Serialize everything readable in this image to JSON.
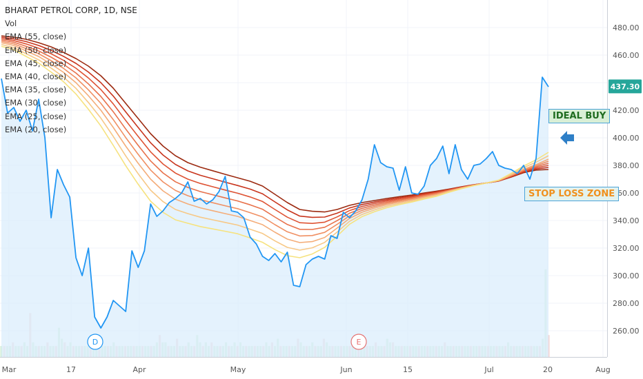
{
  "header": {
    "symbol": "BHARAT PETROL CORP, 1D, NSE",
    "volume_label": "Vol",
    "ema_labels": [
      "EMA (55, close)",
      "EMA (50, close)",
      "EMA (45, close)",
      "EMA (40, close)",
      "EMA (35, close)",
      "EMA (30, close)",
      "EMA (25, close)",
      "EMA (20, close)"
    ]
  },
  "annotations": {
    "ideal_buy": "IDEAL BUY",
    "stop_loss": "STOP LOSS ZONE",
    "arrow_icon": "arrow-left-icon"
  },
  "colors": {
    "price_line": "#2196f3",
    "price_fill": "#dbeefc",
    "last_price_badge": "#26a69a",
    "ema_colors": [
      "#9c2a10",
      "#c8341c",
      "#de5233",
      "#e8714a",
      "#f08f62",
      "#f4ac78",
      "#f7c886",
      "#f6e27e"
    ]
  },
  "chart_data": {
    "type": "line",
    "title": "BHARAT PETROL CORP, 1D, NSE",
    "xlabel": "",
    "ylabel": "",
    "x_ticks": [
      "Mar",
      "17",
      "Apr",
      "May",
      "Jun",
      "15",
      "Jul",
      "20",
      "Aug"
    ],
    "y_ticks": [
      260,
      280,
      300,
      320,
      340,
      360,
      380,
      400,
      420,
      440,
      460,
      480
    ],
    "y_tick_labels": [
      "260.00",
      "280.00",
      "300.00",
      "320.00",
      "340.00",
      "360.00",
      "380.00",
      "400.00",
      "420.00",
      "440.00",
      "460.00",
      "480.00"
    ],
    "ylim": [
      247,
      497
    ],
    "last_price": 437.3,
    "last_price_label": "437.30",
    "event_markers": [
      "D",
      "E"
    ],
    "price": [
      443,
      418,
      422,
      412,
      420,
      405,
      428,
      400,
      342,
      377,
      366,
      357,
      313,
      300,
      320,
      270,
      262,
      270,
      282,
      278,
      274,
      318,
      306,
      318,
      352,
      343,
      347,
      353,
      356,
      360,
      368,
      354,
      356,
      352,
      355,
      361,
      372,
      347,
      346,
      342,
      328,
      323,
      314,
      311,
      316,
      310,
      317,
      293,
      292,
      308,
      312,
      314,
      312,
      329,
      327,
      346,
      342,
      347,
      355,
      370,
      395,
      382,
      379,
      378,
      362,
      379,
      360,
      359,
      365,
      380,
      385,
      394,
      374,
      395,
      377,
      370,
      380,
      381,
      385,
      390,
      380,
      378,
      377,
      374,
      380,
      370,
      385,
      444,
      437
    ],
    "ema_series": [
      {
        "name": "EMA (55, close)",
        "values": [
          474,
          473,
          471.5,
          469,
          466,
          462,
          457.5,
          452,
          445,
          436,
          425,
          414,
          403,
          394,
          387,
          382,
          378.7,
          376.1,
          373.5,
          371,
          368.5,
          365,
          359,
          353,
          348,
          346.7,
          346.2,
          348,
          351,
          353,
          354.5,
          356,
          357.3,
          358.5,
          360,
          361.3,
          362.8,
          364.5,
          366,
          367.2,
          368.6,
          371.5,
          374.7,
          376.6,
          377
        ]
      },
      {
        "name": "EMA (50, close)",
        "values": [
          473,
          471.8,
          469.8,
          467,
          463.5,
          459.1,
          454,
          447.7,
          440,
          430.3,
          418.8,
          407.5,
          396.4,
          387.5,
          380.7,
          376,
          372.8,
          370.3,
          367.8,
          365.4,
          362.8,
          359.4,
          353.5,
          347.7,
          343.2,
          342.3,
          342.5,
          345.3,
          349.1,
          351.6,
          353.4,
          355.1,
          356.5,
          357.8,
          359.4,
          360.8,
          362.5,
          364.3,
          365.9,
          367.2,
          368.7,
          371.8,
          375.2,
          377.4,
          378.5
        ]
      },
      {
        "name": "EMA (45, close)",
        "values": [
          472,
          470.6,
          468.1,
          465,
          461,
          456.2,
          450.5,
          443.4,
          435,
          424.6,
          412.6,
          401,
          389.8,
          381,
          374.4,
          370,
          366.9,
          364.5,
          362.1,
          359.8,
          357.1,
          353.8,
          348,
          342.4,
          338.4,
          337.9,
          338.8,
          342.6,
          347.2,
          350.2,
          352.3,
          354.2,
          355.7,
          357.1,
          358.8,
          360.3,
          362.2,
          364.1,
          365.8,
          367.2,
          368.8,
          372.1,
          375.7,
          378.2,
          380
        ]
      },
      {
        "name": "EMA (40, close)",
        "values": [
          471,
          469.4,
          466.4,
          463,
          458.5,
          453.3,
          447,
          439.1,
          430,
          418.9,
          406.4,
          394.5,
          383.2,
          374.5,
          368.1,
          364,
          361,
          358.7,
          356.4,
          354.2,
          351.4,
          348.2,
          342.5,
          337.1,
          333.6,
          333.5,
          335.1,
          339.9,
          345.3,
          348.8,
          351.2,
          353.3,
          354.9,
          356.4,
          358.2,
          359.8,
          361.9,
          363.9,
          365.7,
          367.2,
          368.9,
          372.4,
          376.2,
          379,
          381.5
        ]
      },
      {
        "name": "EMA (35, close)",
        "values": [
          470,
          468.2,
          464.7,
          461,
          456,
          450.4,
          443.5,
          434.8,
          425,
          413.2,
          400.2,
          388,
          376.6,
          368,
          361.8,
          358,
          355.1,
          352.9,
          350.7,
          348.6,
          345.7,
          342.6,
          337,
          331.8,
          328.8,
          329.1,
          331.4,
          337.2,
          343.4,
          347.4,
          350.1,
          352.4,
          354.1,
          355.7,
          357.6,
          359.3,
          361.6,
          363.7,
          365.6,
          367.2,
          369,
          372.7,
          376.7,
          379.8,
          383
        ]
      },
      {
        "name": "EMA (30, close)",
        "values": [
          469,
          467,
          463,
          459,
          453.5,
          447.5,
          440,
          430.5,
          420,
          407.5,
          394,
          381.5,
          370,
          361.5,
          355.5,
          352,
          349.2,
          347.1,
          345,
          343,
          340,
          337,
          331.5,
          326.5,
          324,
          324.7,
          327.7,
          334.5,
          341.5,
          346,
          349,
          351.5,
          353.3,
          355,
          357,
          358.8,
          361.3,
          363.5,
          365.5,
          367.2,
          369.1,
          373,
          377.2,
          380.6,
          384.5
        ]
      },
      {
        "name": "EMA (25, close)",
        "values": [
          467.7,
          465.5,
          461,
          456.6,
          450.6,
          444.1,
          435.9,
          425.6,
          414.3,
          401,
          386.9,
          373.9,
          362,
          353.7,
          348,
          345,
          342.4,
          340.5,
          338.6,
          336.7,
          333.7,
          330.6,
          325.2,
          320.5,
          318.5,
          320.2,
          324.1,
          331.6,
          339.4,
          344.4,
          347.7,
          350.4,
          352.4,
          354.2,
          356.3,
          358.2,
          360.9,
          363.3,
          365.4,
          367.2,
          369.2,
          373.6,
          378.4,
          382.3,
          387
        ]
      },
      {
        "name": "EMA (20, close)",
        "values": [
          466.4,
          464,
          459,
          454.2,
          447.7,
          440.7,
          431.8,
          420.7,
          408.6,
          394.5,
          379.8,
          366.3,
          354,
          345.9,
          340.5,
          338,
          335.6,
          333.9,
          332.2,
          330.4,
          327.4,
          324.2,
          318.9,
          314.5,
          313,
          315.7,
          320.5,
          328.7,
          337.3,
          342.8,
          346.4,
          349.3,
          351.5,
          353.4,
          355.6,
          357.6,
          360.5,
          363.1,
          365.3,
          367.2,
          369.3,
          374.2,
          379.6,
          384,
          389.5
        ]
      }
    ],
    "volume": [
      3,
      3,
      3,
      3,
      4,
      3,
      3,
      3,
      4,
      3,
      12,
      4,
      3,
      3,
      3,
      3,
      4,
      3,
      3,
      3,
      8,
      5,
      4,
      3,
      4,
      3,
      3,
      3,
      3,
      3,
      3,
      3,
      3,
      5,
      3,
      3,
      3,
      3,
      3,
      4,
      3,
      3,
      3,
      3,
      3,
      3,
      3,
      3,
      3,
      3,
      3,
      3,
      3,
      3,
      4,
      6,
      4,
      4,
      3,
      3,
      3,
      5,
      3,
      3,
      3,
      4,
      3,
      3,
      6,
      4,
      3,
      4,
      3,
      4,
      3,
      3,
      3,
      3,
      4,
      3,
      3,
      4,
      3,
      4,
      3,
      3,
      3,
      3,
      3,
      3,
      3,
      3,
      4,
      3,
      4,
      3,
      5,
      3,
      3,
      3,
      3,
      3,
      3,
      5,
      4,
      3,
      3,
      3,
      4,
      3,
      3,
      3,
      5,
      4,
      3,
      3,
      3,
      3,
      3,
      3,
      3,
      3,
      3,
      3,
      3,
      4,
      3,
      3,
      3,
      3,
      4,
      3,
      3,
      3,
      5,
      4,
      4,
      3,
      3,
      3,
      3,
      3,
      3,
      3,
      3,
      3,
      3,
      3,
      3,
      3,
      3,
      3,
      3,
      3,
      4,
      3,
      3,
      3,
      3,
      3,
      3,
      3,
      3,
      3,
      3,
      3,
      3,
      3,
      3,
      3,
      3,
      3,
      3,
      3,
      3,
      3,
      4,
      3,
      3,
      3,
      3,
      3,
      3,
      3,
      3,
      3,
      3,
      3,
      5,
      24,
      6
    ]
  }
}
